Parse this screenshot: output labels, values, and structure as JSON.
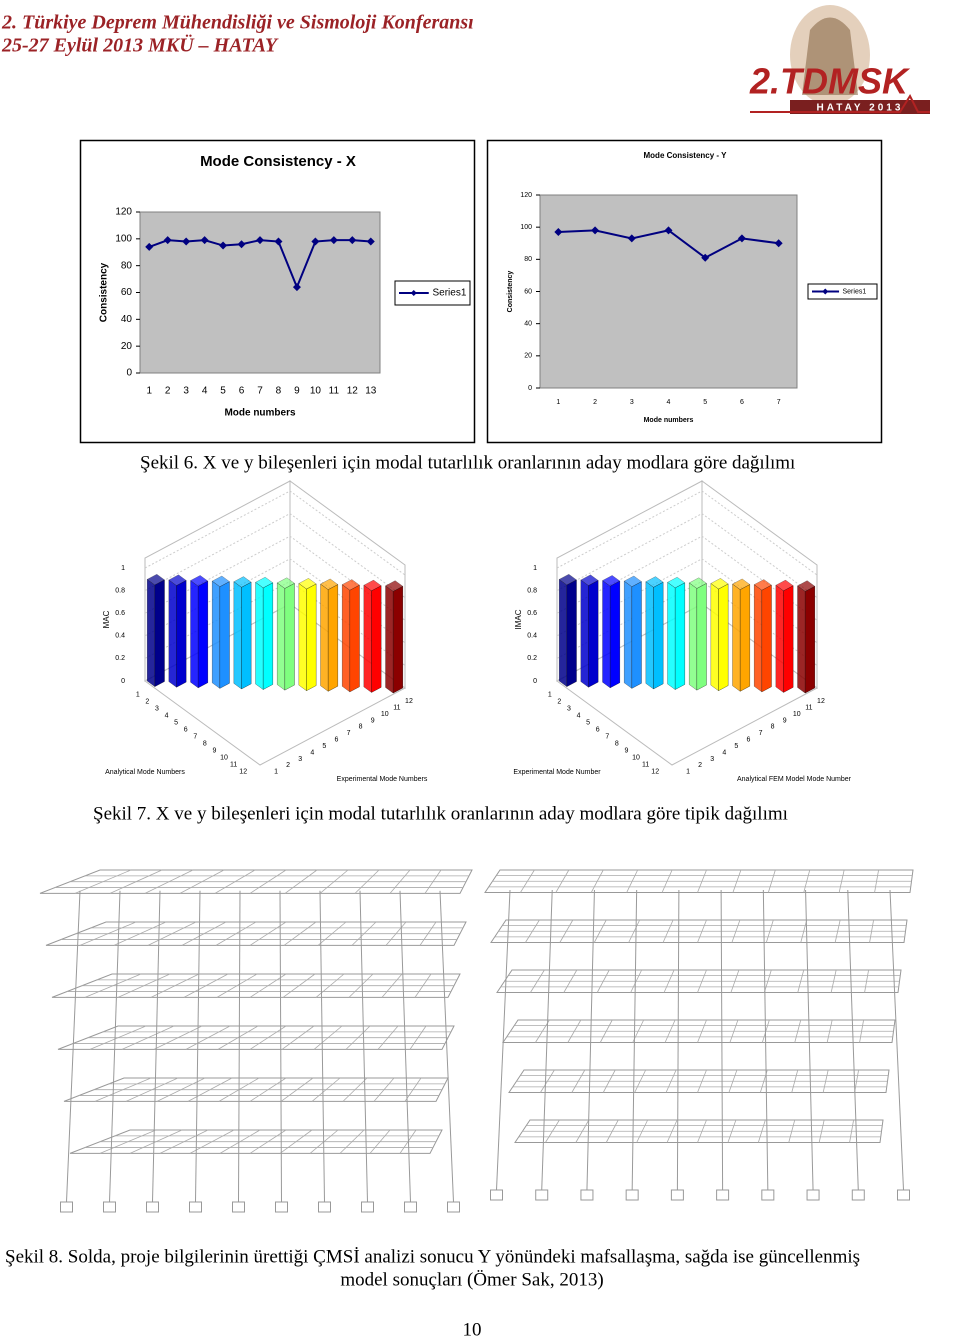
{
  "header": {
    "conference": "2. Türkiye Deprem Mühendisliği ve Sismoloji Konferansı",
    "dates": "25-27 Eylül 2013 MKÜ – HATAY",
    "logo_title": "2.TDMSK",
    "logo_subtitle": "HATAY 2013"
  },
  "chart_data": [
    {
      "type": "line",
      "title": "Mode Consistency - X",
      "x_label": "Mode numbers",
      "y_label": "Consistency",
      "categories": [
        1,
        2,
        3,
        4,
        5,
        6,
        7,
        8,
        9,
        10,
        11,
        12,
        13
      ],
      "series": [
        {
          "name": "Series1",
          "color": "#000080",
          "values": [
            94,
            99,
            98,
            99,
            95,
            96,
            99,
            98,
            64,
            98,
            99,
            99,
            98
          ]
        }
      ],
      "ylim": [
        0,
        120
      ],
      "yticks": [
        0,
        20,
        40,
        60,
        80,
        100,
        120
      ],
      "legend": "right"
    },
    {
      "type": "line",
      "title": "Mode Consistency - Y",
      "x_label": "Mode numbers",
      "y_label": "Consistency",
      "categories": [
        1,
        2,
        3,
        4,
        5,
        6,
        7
      ],
      "series": [
        {
          "name": "Series1",
          "color": "#000080",
          "values": [
            97,
            98,
            93,
            98,
            81,
            93,
            90
          ]
        }
      ],
      "ylim": [
        0,
        120
      ],
      "yticks": [
        0,
        20,
        40,
        60,
        80,
        100,
        120
      ],
      "legend": "right"
    }
  ],
  "figure6_caption": "Şekil 6. X ve y bileşenleri için modal tutarlılık oranlarının aday modlara göre dağılımı",
  "figure7": {
    "plots": [
      {
        "z_label": "MAC",
        "z_ticks": [
          1,
          0.8,
          0.6,
          0.4,
          0.2,
          0
        ],
        "x_label": "Analytical Mode Numbers",
        "y_label": "Experimental Mode Numbers",
        "x_ticks": [
          1,
          2,
          3,
          4,
          5,
          6,
          7,
          8,
          9,
          10,
          11,
          12
        ],
        "y_ticks": [
          1,
          2,
          3,
          4,
          5,
          6,
          7,
          8,
          9,
          10,
          11,
          12
        ]
      },
      {
        "z_label": "IMAC",
        "z_ticks": [
          1,
          0.8,
          0.6,
          0.4,
          0.2,
          0
        ],
        "x_label": "Experimental Mode Number",
        "y_label": "Analytical FEM Model Mode Number",
        "x_ticks": [
          1,
          2,
          3,
          4,
          5,
          6,
          7,
          8,
          9,
          10,
          11,
          12
        ],
        "y_ticks": [
          1,
          2,
          3,
          4,
          5,
          6,
          7,
          8,
          9,
          10,
          11,
          12
        ]
      }
    ],
    "caption": "Şekil 7. X ve y bileşenleri için modal tutarlılık oranlarının aday modlara göre tipik dağılımı"
  },
  "figure8": {
    "caption_line1": "Şekil 8. Solda, proje bilgilerinin ürettiği ÇMSİ analizi sonucu Y yönündeki mafsallaşma, sağda ise güncellenmiş",
    "caption_line2": "model sonuçları (Ömer Sak, 2013)"
  },
  "page_number": "10"
}
